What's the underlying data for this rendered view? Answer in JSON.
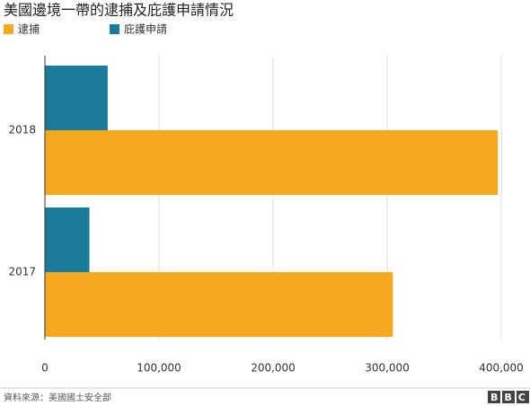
{
  "chart_data": {
    "type": "hbar",
    "title": "美國邊境一帶的逮捕及庇護申請情況",
    "categories": [
      "2018",
      "2017"
    ],
    "series": [
      {
        "name": "逮捕",
        "color": "#f6a91e",
        "values": [
          397000,
          305000
        ]
      },
      {
        "name": "庇護申請",
        "color": "#1a7b9b",
        "values": [
          55000,
          39000
        ]
      }
    ],
    "xlim": [
      0,
      400000
    ],
    "xticks": [
      0,
      {
        "value": 100000,
        "label": "100,000"
      },
      {
        "value": 200000,
        "label": "200,000"
      },
      {
        "value": 300000,
        "label": "300,000"
      },
      {
        "value": 400000,
        "label": "400,000"
      }
    ],
    "grid": true,
    "source": "資料來源：美國國土安全部",
    "logo": "BBC"
  }
}
